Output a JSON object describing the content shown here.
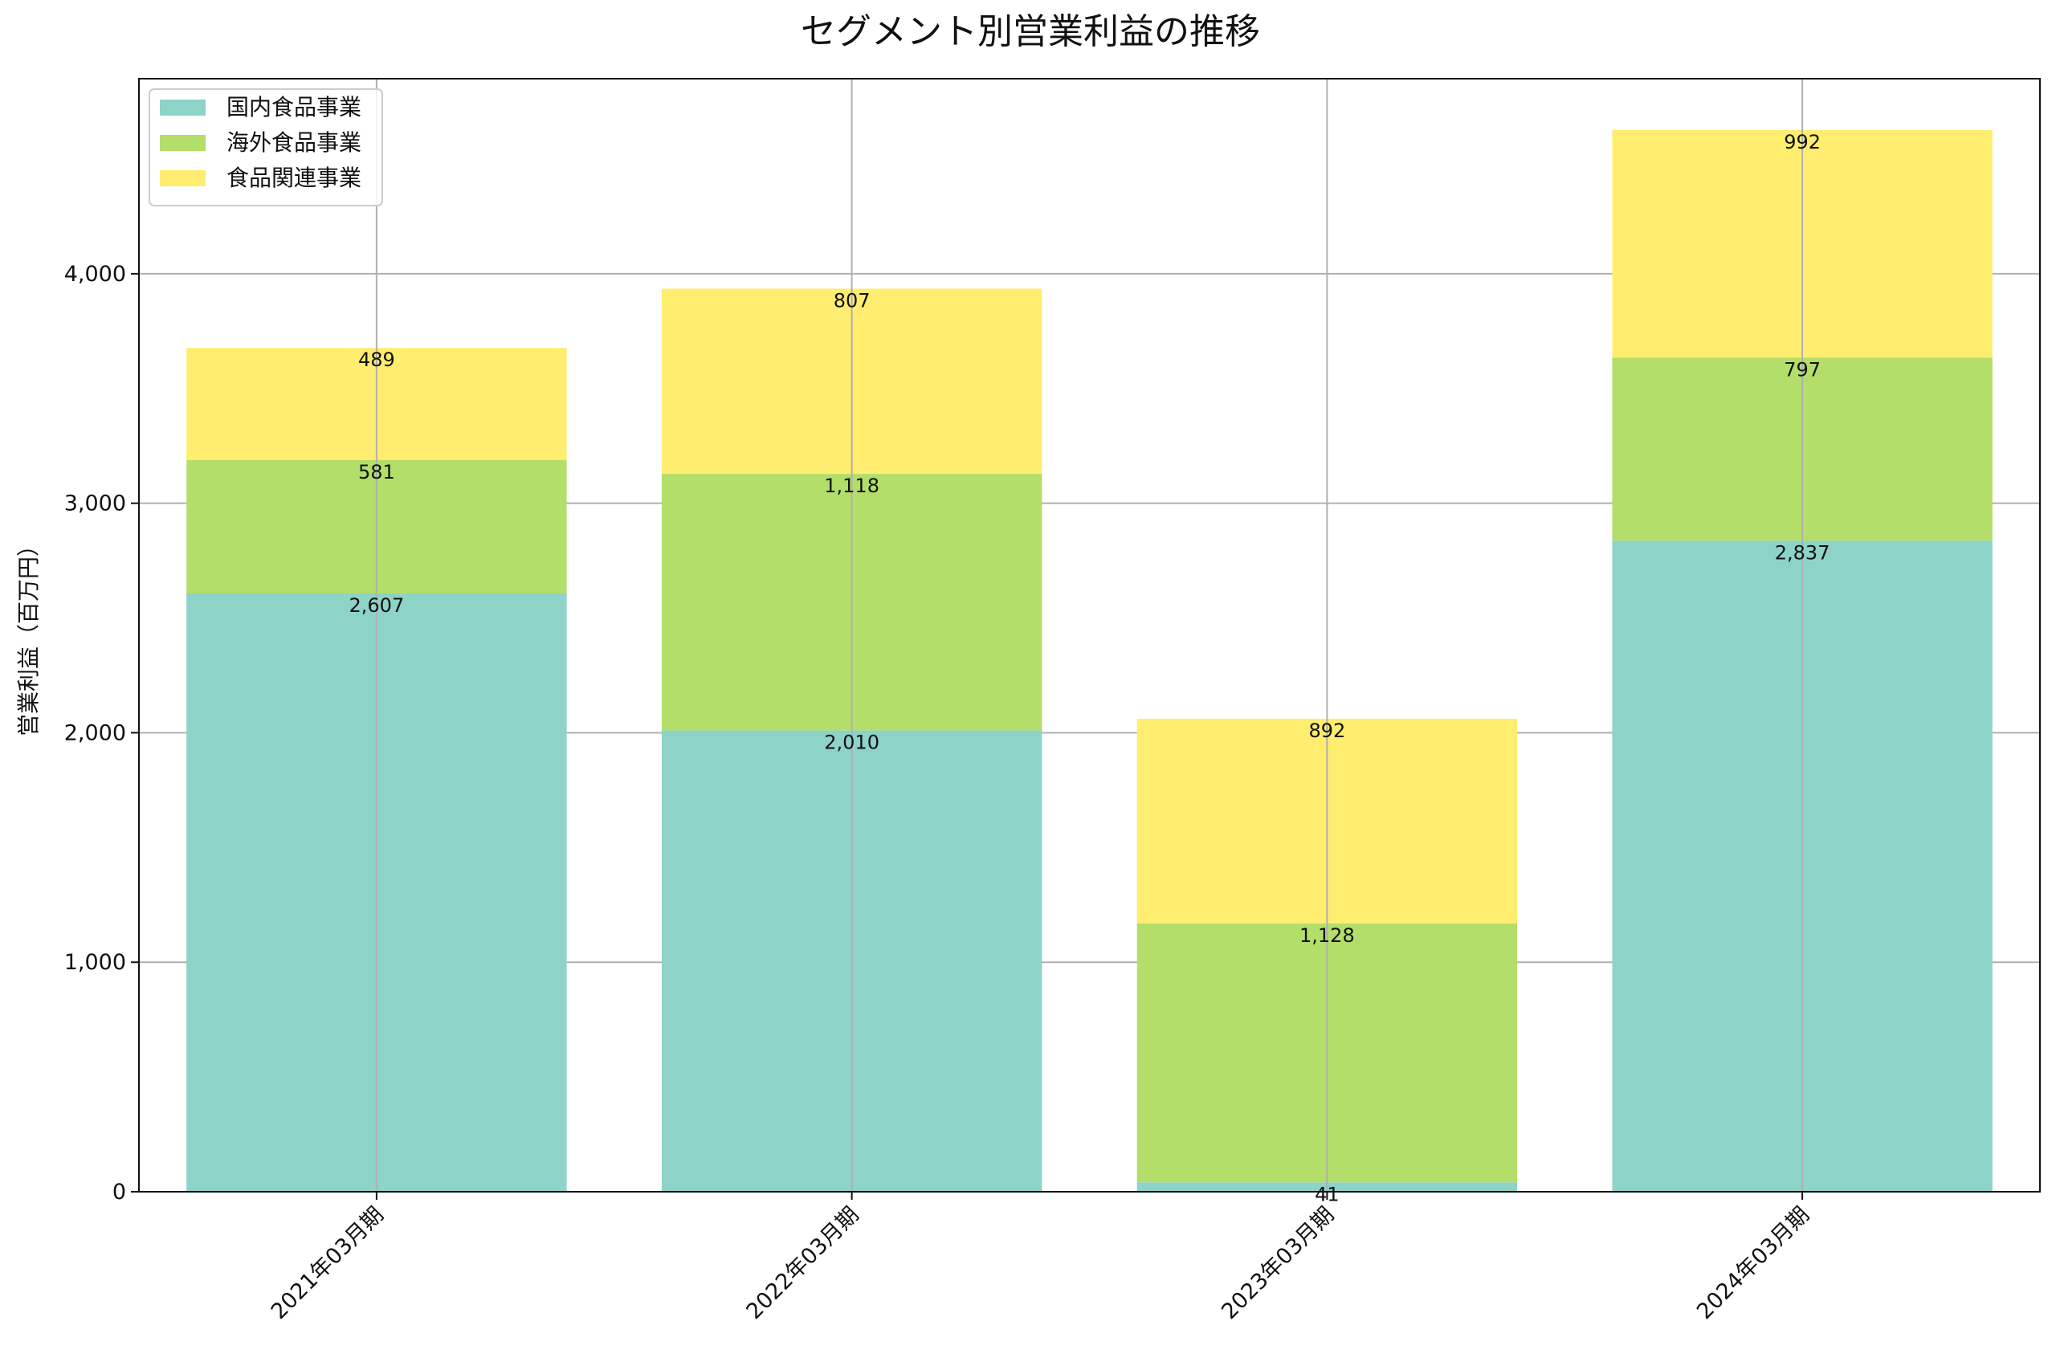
{
  "chart_data": {
    "type": "bar",
    "stacked": true,
    "title": "セグメント別営業利益の推移",
    "xlabel": "",
    "ylabel": "営業利益（百万円）",
    "ylim": [
      0,
      4850
    ],
    "y_ticks": [
      0,
      1000,
      2000,
      3000,
      4000
    ],
    "y_tick_labels": [
      "0",
      "1,000",
      "2,000",
      "3,000",
      "4,000"
    ],
    "grid": true,
    "legend_position": "top-left",
    "categories": [
      "2021年03月期",
      "2022年03月期",
      "2023年03月期",
      "2024年03月期"
    ],
    "series": [
      {
        "name": "国内食品事業",
        "color": "#8dd3c7",
        "values": [
          2607,
          2010,
          41,
          2837
        ],
        "labels": [
          "2,607",
          "2,010",
          "41",
          "2,837"
        ]
      },
      {
        "name": "海外食品事業",
        "color": "#b3de69",
        "values": [
          581,
          1118,
          1128,
          797
        ],
        "labels": [
          "581",
          "1,118",
          "1,128",
          "797"
        ]
      },
      {
        "name": "食品関連事業",
        "color": "#ffed6f",
        "values": [
          489,
          807,
          892,
          992
        ],
        "labels": [
          "489",
          "807",
          "892",
          "992"
        ]
      }
    ]
  }
}
